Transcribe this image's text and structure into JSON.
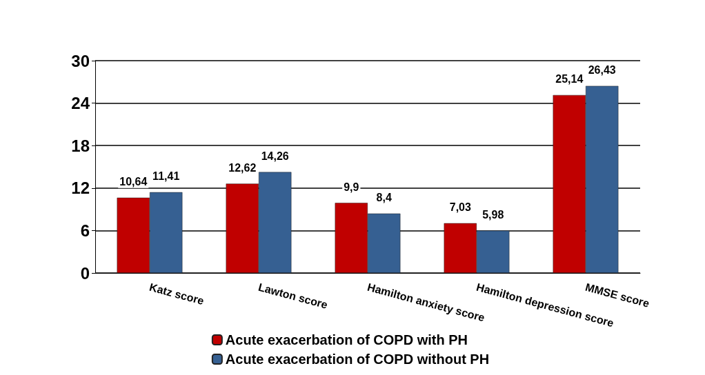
{
  "chart_data": {
    "type": "bar",
    "categories": [
      "Katz score",
      "Lawton score",
      "Hamilton anxiety score",
      "Hamilton depression score",
      "MMSE score"
    ],
    "series": [
      {
        "name": "Acute exacerbation of COPD with PH",
        "color": "#c00000",
        "values": [
          10.64,
          12.62,
          9.9,
          7.03,
          25.14
        ],
        "value_labels": [
          "10,64",
          "12,62",
          "9,9",
          "7,03",
          "25,14"
        ]
      },
      {
        "name": "Acute exacerbation of COPD without PH",
        "color": "#366092",
        "values": [
          11.41,
          14.26,
          8.4,
          5.98,
          26.43
        ],
        "value_labels": [
          "11,41",
          "14,26",
          "8,4",
          "5,98",
          "26,43"
        ]
      }
    ],
    "ylim": [
      0,
      30
    ],
    "yticks": [
      0,
      6,
      12,
      18,
      24,
      30
    ],
    "grid": "y",
    "legend": "bottom"
  }
}
